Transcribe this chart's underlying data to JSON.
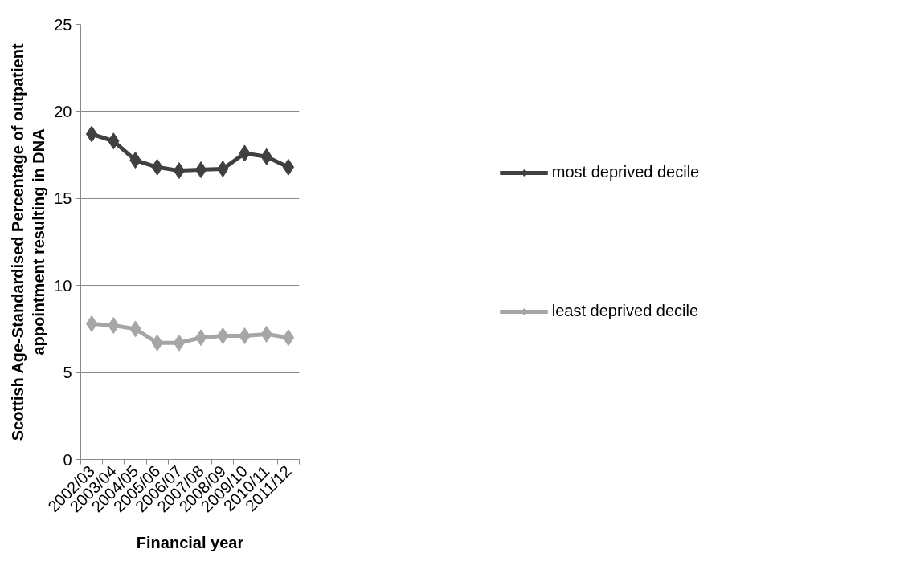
{
  "chart_data": {
    "type": "line",
    "xlabel": "Financial year",
    "ylabel": "Scottish Age-Standardised Percentage of outpatient appointment resulting in DNA",
    "categories": [
      "2002/03",
      "2003/04",
      "2004/05",
      "2005/06",
      "2006/07",
      "2007/08",
      "2008/09",
      "2009/10",
      "2010/11",
      "2011/12"
    ],
    "series": [
      {
        "name": "most deprived decile",
        "color": "#404040",
        "values": [
          18.7,
          18.3,
          17.2,
          16.8,
          16.6,
          16.65,
          16.7,
          17.6,
          17.4,
          16.8
        ]
      },
      {
        "name": "least deprived decile",
        "color": "#a6a6a6",
        "values": [
          7.8,
          7.7,
          7.5,
          6.7,
          6.7,
          7.0,
          7.1,
          7.1,
          7.2,
          7.0
        ]
      }
    ],
    "ylim": [
      0,
      25
    ],
    "yticks": [
      0,
      5,
      10,
      15,
      20,
      25
    ],
    "grid": "y",
    "legend": "right",
    "marker": "diamond",
    "line_style": "solid"
  }
}
